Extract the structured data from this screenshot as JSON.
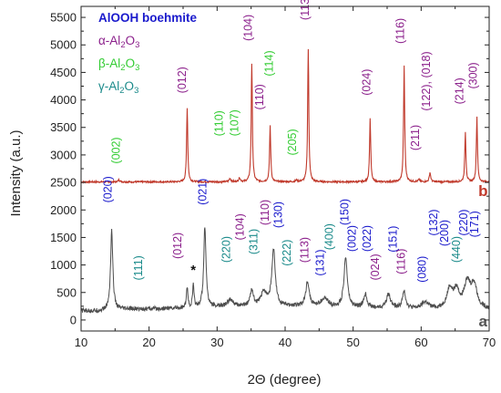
{
  "chart_data": {
    "type": "line",
    "xlabel": "2Θ (degree)",
    "ylabel": "Intensity (a.u.)",
    "xlim": [
      10,
      70
    ],
    "ylim": [
      -200,
      5700
    ],
    "x_ticks": [
      10,
      20,
      30,
      40,
      50,
      60,
      70
    ],
    "x_tick_labels": [
      "10",
      "20",
      "30",
      "40",
      "50",
      "60",
      "70"
    ],
    "y_ticks": [
      0,
      500,
      1000,
      1500,
      2000,
      2500,
      3000,
      3500,
      4000,
      4500,
      5000,
      5500
    ],
    "y_tick_labels": [
      "0",
      "500",
      "1000",
      "1500",
      "2000",
      "2500",
      "3000",
      "3500",
      "4000",
      "4500",
      "5000",
      "5500"
    ],
    "grid": false,
    "legend": {
      "placement": "top-left",
      "entries": [
        {
          "text": "AlOOH boehmite",
          "color": "#1a1acc"
        },
        {
          "text": "α-Al",
          "sub1": "2",
          "mid": "O",
          "sub2": "3",
          "color": "#8b1f8b"
        },
        {
          "text": "β-Al",
          "sub1": "2",
          "mid": "O",
          "sub2": "3",
          "color": "#33cc33"
        },
        {
          "text": "γ-Al",
          "sub1": "2",
          "mid": "O",
          "sub2": "3",
          "color": "#1a8a8a"
        }
      ]
    },
    "series": [
      {
        "name": "b",
        "color": "#c0392b",
        "baseline": 2510,
        "noise": 15,
        "peaks": [
          {
            "x": 15.6,
            "h": 40,
            "w": 0.15
          },
          {
            "x": 25.6,
            "h": 1340,
            "w": 0.1
          },
          {
            "x": 31.9,
            "h": 60,
            "w": 0.15
          },
          {
            "x": 33.3,
            "h": 70,
            "w": 0.15
          },
          {
            "x": 35.1,
            "h": 2150,
            "w": 0.1
          },
          {
            "x": 37.8,
            "h": 1020,
            "w": 0.1
          },
          {
            "x": 41.7,
            "h": 30,
            "w": 0.15
          },
          {
            "x": 43.4,
            "h": 2400,
            "w": 0.1
          },
          {
            "x": 52.5,
            "h": 1150,
            "w": 0.1
          },
          {
            "x": 57.5,
            "h": 2100,
            "w": 0.1
          },
          {
            "x": 59.7,
            "h": 40,
            "w": 0.15
          },
          {
            "x": 61.3,
            "h": 170,
            "w": 0.12
          },
          {
            "x": 66.5,
            "h": 900,
            "w": 0.1
          },
          {
            "x": 68.2,
            "h": 1180,
            "w": 0.1
          }
        ]
      },
      {
        "name": "a",
        "color": "#4d4d4d",
        "baseline": 190,
        "noise": 40,
        "peaks": [
          {
            "x": 14.5,
            "h": 1450,
            "w": 0.2
          },
          {
            "x": 25.6,
            "h": 380,
            "w": 0.12
          },
          {
            "x": 26.5,
            "h": 420,
            "w": 0.12
          },
          {
            "x": 28.2,
            "h": 1480,
            "w": 0.2
          },
          {
            "x": 31.9,
            "h": 120,
            "w": 0.5
          },
          {
            "x": 35.1,
            "h": 300,
            "w": 0.25
          },
          {
            "x": 36.9,
            "h": 250,
            "w": 0.5
          },
          {
            "x": 38.3,
            "h": 1000,
            "w": 0.3
          },
          {
            "x": 43.3,
            "h": 450,
            "w": 0.3
          },
          {
            "x": 45.8,
            "h": 150,
            "w": 0.6
          },
          {
            "x": 48.9,
            "h": 900,
            "w": 0.3
          },
          {
            "x": 51.8,
            "h": 250,
            "w": 0.3
          },
          {
            "x": 55.2,
            "h": 250,
            "w": 0.4
          },
          {
            "x": 57.5,
            "h": 300,
            "w": 0.3
          },
          {
            "x": 60.6,
            "h": 120,
            "w": 0.6
          },
          {
            "x": 64.2,
            "h": 350,
            "w": 0.5
          },
          {
            "x": 65.2,
            "h": 300,
            "w": 0.5
          },
          {
            "x": 66.8,
            "h": 450,
            "w": 0.6
          },
          {
            "x": 67.8,
            "h": 400,
            "w": 0.5
          }
        ]
      }
    ],
    "curve_labels": [
      {
        "text": "b",
        "x": 69.1,
        "y": 2250,
        "color": "#c0392b"
      },
      {
        "text": "a",
        "x": 69.1,
        "y": -120,
        "color": "#555555"
      }
    ],
    "annotations": [
      {
        "text": "(002)",
        "x": 15.7,
        "y": 2840,
        "color": "#33cc33"
      },
      {
        "text": "(012)",
        "x": 25.4,
        "y": 4120,
        "color": "#8b1f8b"
      },
      {
        "text": "(110)",
        "x": 30.8,
        "y": 3340,
        "color": "#33cc33"
      },
      {
        "text": "(107)",
        "x": 33.1,
        "y": 3340,
        "color": "#33cc33"
      },
      {
        "text": "(104)",
        "x": 35.1,
        "y": 5070,
        "color": "#8b1f8b"
      },
      {
        "text": "(114)",
        "x": 38.2,
        "y": 4430,
        "color": "#33cc33"
      },
      {
        "text": "(110)",
        "x": 36.8,
        "y": 3820,
        "color": "#8b1f8b"
      },
      {
        "text": "(205)",
        "x": 41.6,
        "y": 2990,
        "color": "#33cc33"
      },
      {
        "text": "(113)",
        "x": 43.5,
        "y": 5450,
        "color": "#8b1f8b"
      },
      {
        "text": "(024)",
        "x": 52.5,
        "y": 4080,
        "color": "#8b1f8b"
      },
      {
        "text": "(116)",
        "x": 57.5,
        "y": 5020,
        "color": "#8b1f8b"
      },
      {
        "text": "(211)",
        "x": 59.7,
        "y": 3080,
        "color": "#8b1f8b"
      },
      {
        "text": "(122), (018)",
        "x": 61.3,
        "y": 3800,
        "color": "#8b1f8b"
      },
      {
        "text": "(214)",
        "x": 66.2,
        "y": 3920,
        "color": "#8b1f8b"
      },
      {
        "text": "(300)",
        "x": 68.2,
        "y": 4200,
        "color": "#8b1f8b"
      },
      {
        "text": "(020)",
        "x": 14.5,
        "y": 2130,
        "color": "#1a1acc"
      },
      {
        "text": "(111)",
        "x": 19.0,
        "y": 720,
        "color": "#1a8a8a"
      },
      {
        "text": "(012)",
        "x": 24.7,
        "y": 1110,
        "color": "#8b1f8b"
      },
      {
        "text": "(021)",
        "x": 28.4,
        "y": 2090,
        "color": "#1a1acc"
      },
      {
        "text": "(220)",
        "x": 31.9,
        "y": 1040,
        "color": "#1a8a8a"
      },
      {
        "text": "(104)",
        "x": 33.9,
        "y": 1450,
        "color": "#8b1f8b"
      },
      {
        "text": "(311)",
        "x": 35.9,
        "y": 1190,
        "color": "#1a8a8a"
      },
      {
        "text": "(110)",
        "x": 37.6,
        "y": 1720,
        "color": "#8b1f8b"
      },
      {
        "text": "(130)",
        "x": 39.5,
        "y": 1670,
        "color": "#1a1acc"
      },
      {
        "text": "(222)",
        "x": 40.8,
        "y": 980,
        "color": "#1a8a8a"
      },
      {
        "text": "(113)",
        "x": 43.4,
        "y": 1040,
        "color": "#8b1f8b"
      },
      {
        "text": "(131)",
        "x": 45.7,
        "y": 800,
        "color": "#1a1acc"
      },
      {
        "text": "(400)",
        "x": 47.0,
        "y": 1270,
        "color": "#1a8a8a"
      },
      {
        "text": "(150)",
        "x": 49.3,
        "y": 1720,
        "color": "#1a1acc"
      },
      {
        "text": "(002)",
        "x": 50.4,
        "y": 1240,
        "color": "#1a1acc"
      },
      {
        "text": "(022)",
        "x": 52.6,
        "y": 1240,
        "color": "#1a1acc"
      },
      {
        "text": "(024)",
        "x": 53.8,
        "y": 720,
        "color": "#8b1f8b"
      },
      {
        "text": "(151)",
        "x": 56.4,
        "y": 1230,
        "color": "#1a1acc"
      },
      {
        "text": "(116)",
        "x": 57.6,
        "y": 830,
        "color": "#8b1f8b"
      },
      {
        "text": "(080)",
        "x": 60.7,
        "y": 680,
        "color": "#1a1acc"
      },
      {
        "text": "(132)",
        "x": 62.4,
        "y": 1530,
        "color": "#1a1acc"
      },
      {
        "text": "(200)",
        "x": 64.0,
        "y": 1340,
        "color": "#1a1acc"
      },
      {
        "text": "(440)",
        "x": 65.7,
        "y": 1040,
        "color": "#1a8a8a"
      },
      {
        "text": "(220)",
        "x": 66.8,
        "y": 1530,
        "color": "#1a1acc"
      },
      {
        "text": "(171)",
        "x": 68.4,
        "y": 1500,
        "color": "#1a1acc"
      },
      {
        "text": "*",
        "x": 26.5,
        "y": 830,
        "color": "#111111",
        "kind": "marker"
      }
    ]
  }
}
